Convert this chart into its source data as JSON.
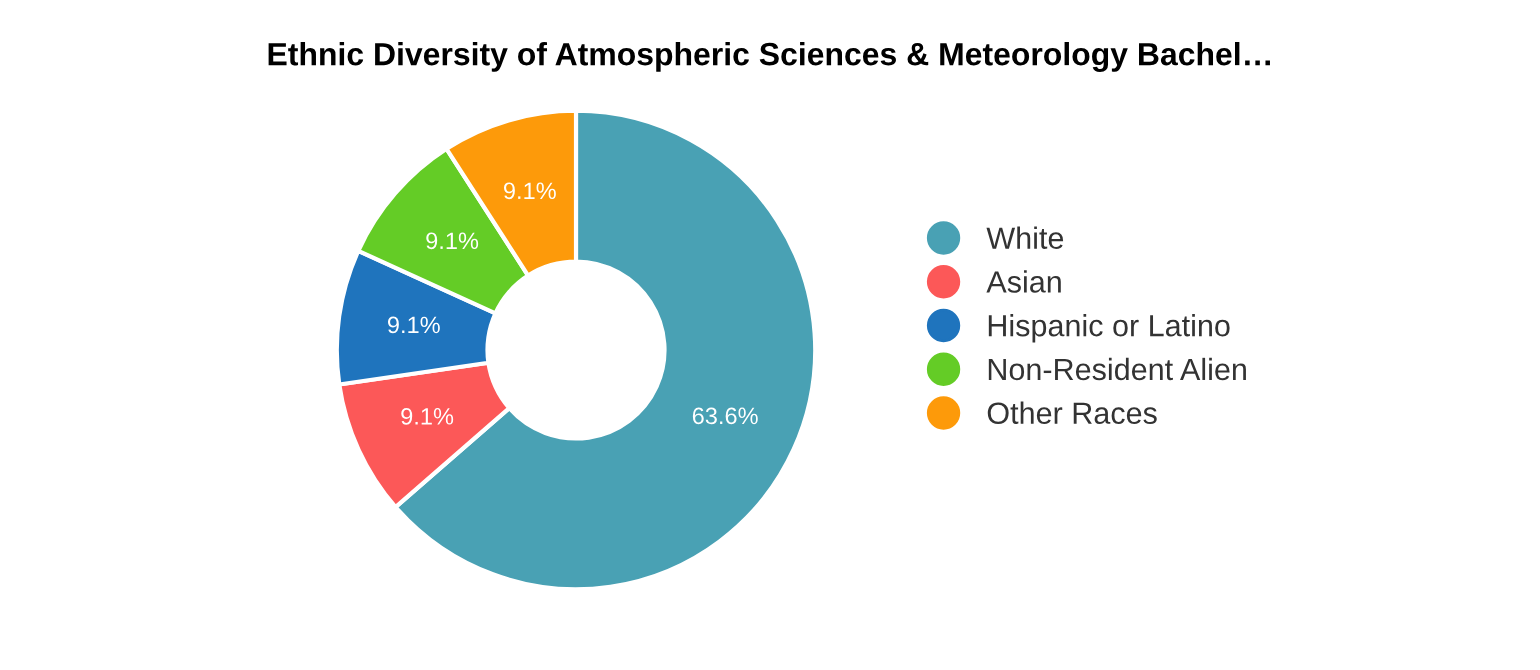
{
  "chart_data": {
    "type": "donut",
    "title": "Ethnic Diversity of Atmospheric Sciences & Meteorology Bachel…",
    "categories": [
      "White",
      "Asian",
      "Hispanic or Latino",
      "Non-Resident Alien",
      "Other Races"
    ],
    "values": [
      63.6,
      9.1,
      9.1,
      9.1,
      9.1
    ],
    "colors": [
      "#49a1b4",
      "#fc5858",
      "#1f74bd",
      "#64cc26",
      "#fd9a0a"
    ],
    "value_labels": [
      "63.6%",
      "9.1%",
      "9.1%",
      "9.1%",
      "9.1%"
    ],
    "legend": "right"
  }
}
